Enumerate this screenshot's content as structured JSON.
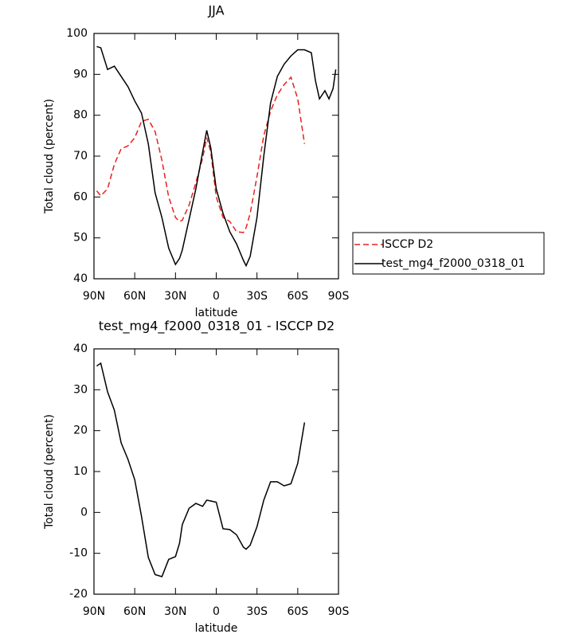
{
  "chart_data": [
    {
      "type": "line",
      "title": "JJA",
      "xlabel": "latitude",
      "ylabel": "Total cloud (percent)",
      "xlim": [
        90,
        -90
      ],
      "xticks": [
        {
          "value": 90,
          "label": "90N"
        },
        {
          "value": 60,
          "label": "60N"
        },
        {
          "value": 30,
          "label": "30N"
        },
        0,
        {
          "value": -30,
          "label": "30S"
        },
        {
          "value": -60,
          "label": "60S"
        },
        {
          "value": -90,
          "label": "90S"
        }
      ],
      "ylim": [
        40,
        100
      ],
      "yticks": [
        40,
        50,
        60,
        70,
        80,
        90,
        100
      ],
      "legend": "right",
      "x": [
        88,
        85,
        80,
        75,
        70,
        65,
        60,
        55,
        50,
        45,
        40,
        35,
        30,
        27,
        25,
        20,
        15,
        10,
        7,
        4,
        0,
        -5,
        -10,
        -15,
        -20,
        -22,
        -25,
        -30,
        -35,
        -40,
        -45,
        -50,
        -55,
        -60,
        -65,
        -70,
        -73,
        -76,
        -80,
        -83,
        -86,
        -88
      ],
      "series": [
        {
          "name": "ISCCP D2",
          "color": "#e8211c",
          "dash": true,
          "values": [
            61.5,
            60.3,
            62,
            68,
            71.8,
            72.5,
            74.5,
            78.5,
            79,
            76,
            69,
            60,
            55,
            54,
            54.3,
            58,
            63.5,
            69.5,
            74.5,
            71,
            60,
            55,
            54,
            51.5,
            51.3,
            52.5,
            56,
            65,
            75,
            81,
            85,
            87.5,
            89.3,
            84,
            73,
            null,
            null,
            null,
            null,
            null,
            null,
            null
          ]
        },
        {
          "name": "test_mg4_f2000_0318_01",
          "color": "#000000",
          "dash": false,
          "values": [
            96.8,
            96.5,
            91.2,
            92,
            89.5,
            87,
            83.5,
            80.5,
            73,
            61,
            55,
            47.5,
            43.5,
            45,
            47,
            54.5,
            62,
            71,
            76.3,
            72,
            62,
            56,
            51.5,
            48.5,
            44.5,
            43.2,
            45.5,
            55,
            70,
            83,
            89.5,
            92.5,
            94.5,
            96,
            96,
            95.3,
            88.5,
            84,
            86,
            84,
            86.5,
            91.2
          ]
        }
      ]
    },
    {
      "type": "line",
      "title": "test_mg4_f2000_0318_01 - ISCCP D2",
      "xlabel": "latitude",
      "ylabel": "Total cloud (percent)",
      "xlim": [
        90,
        -90
      ],
      "xticks": [
        {
          "value": 90,
          "label": "90N"
        },
        {
          "value": 60,
          "label": "60N"
        },
        {
          "value": 30,
          "label": "30N"
        },
        0,
        {
          "value": -30,
          "label": "30S"
        },
        {
          "value": -60,
          "label": "60S"
        },
        {
          "value": -90,
          "label": "90S"
        }
      ],
      "ylim": [
        -20,
        40
      ],
      "yticks": [
        -20,
        -10,
        0,
        10,
        20,
        30,
        40
      ],
      "x": [
        88,
        85,
        80,
        75,
        70,
        65,
        60,
        55,
        50,
        45,
        40,
        35,
        30,
        27,
        25,
        20,
        15,
        10,
        7,
        4,
        0,
        -5,
        -10,
        -15,
        -20,
        -22,
        -25,
        -30,
        -35,
        -40,
        -45,
        -50,
        -55,
        -60,
        -65
      ],
      "series": [
        {
          "color": "#000000",
          "dash": false,
          "values": [
            35.8,
            36.5,
            29.5,
            25,
            17,
            13,
            8,
            -1,
            -11,
            -15.2,
            -15.7,
            -11.5,
            -10.8,
            -7.5,
            -3,
            1,
            2.2,
            1.5,
            3,
            2.8,
            2.5,
            -4,
            -4.2,
            -5.5,
            -8.5,
            -9,
            -8,
            -3.5,
            3,
            7.5,
            7.5,
            6.5,
            7,
            12,
            22
          ]
        }
      ]
    }
  ]
}
